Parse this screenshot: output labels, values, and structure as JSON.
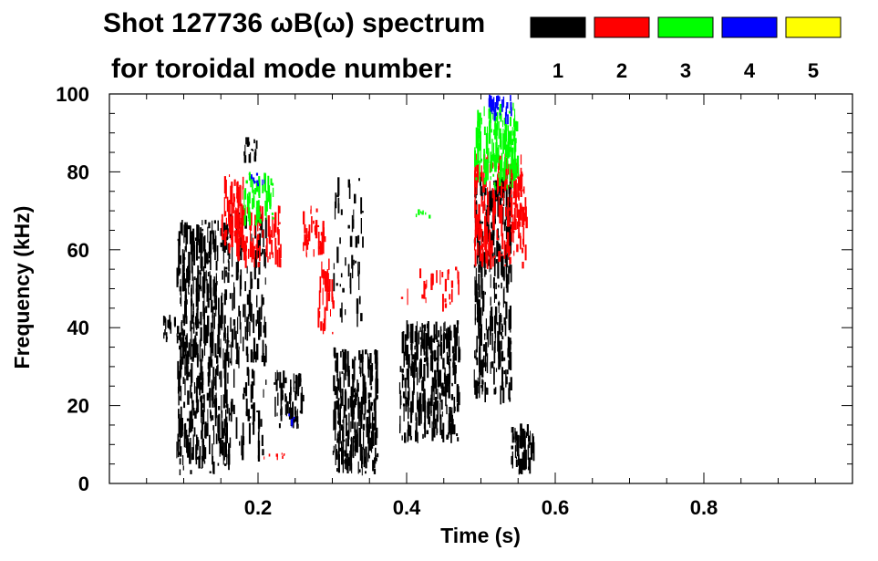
{
  "chart_data": {
    "type": "heatmap",
    "title_line1": "Shot 127736 ωB(ω) spectrum",
    "title_line2": "for toroidal mode number:",
    "xlabel": "Time (s)",
    "ylabel": "Frequency (kHz)",
    "xlim": [
      0.0,
      1.0
    ],
    "ylim": [
      0,
      100
    ],
    "xticks": [
      "0.2",
      "0.4",
      "0.6",
      "0.8"
    ],
    "xtick_values": [
      0.2,
      0.4,
      0.6,
      0.8
    ],
    "yticks": [
      "0",
      "20",
      "40",
      "60",
      "80",
      "100"
    ],
    "ytick_values": [
      0,
      20,
      40,
      60,
      80,
      100
    ],
    "legend": [
      {
        "label": "1",
        "color": "#000000"
      },
      {
        "label": "2",
        "color": "#ff0000"
      },
      {
        "label": "3",
        "color": "#00ff00"
      },
      {
        "label": "4",
        "color": "#0000ff"
      },
      {
        "label": "5",
        "color": "#ffff00"
      }
    ],
    "regions": [
      {
        "mode": "1",
        "color": "#000000",
        "t": [
          0.07,
          0.1
        ],
        "f": [
          36,
          44
        ],
        "density": 0.5
      },
      {
        "mode": "1",
        "color": "#000000",
        "t": [
          0.09,
          0.16
        ],
        "f": [
          2,
          68
        ],
        "density": 0.45
      },
      {
        "mode": "1",
        "color": "#000000",
        "t": [
          0.16,
          0.21
        ],
        "f": [
          5,
          70
        ],
        "density": 0.2
      },
      {
        "mode": "1",
        "color": "#000000",
        "t": [
          0.18,
          0.2
        ],
        "f": [
          82,
          89
        ],
        "density": 0.5
      },
      {
        "mode": "1",
        "color": "#000000",
        "t": [
          0.22,
          0.26
        ],
        "f": [
          14,
          30
        ],
        "density": 0.35
      },
      {
        "mode": "1",
        "color": "#000000",
        "t": [
          0.3,
          0.36
        ],
        "f": [
          2,
          35
        ],
        "density": 0.55
      },
      {
        "mode": "1",
        "color": "#000000",
        "t": [
          0.3,
          0.34
        ],
        "f": [
          40,
          80
        ],
        "density": 0.12
      },
      {
        "mode": "1",
        "color": "#000000",
        "t": [
          0.39,
          0.47
        ],
        "f": [
          10,
          42
        ],
        "density": 0.5
      },
      {
        "mode": "1",
        "color": "#000000",
        "t": [
          0.49,
          0.54
        ],
        "f": [
          20,
          80
        ],
        "density": 0.45
      },
      {
        "mode": "1",
        "color": "#000000",
        "t": [
          0.54,
          0.57
        ],
        "f": [
          2,
          16
        ],
        "density": 0.55
      },
      {
        "mode": "2",
        "color": "#ff0000",
        "t": [
          0.15,
          0.18
        ],
        "f": [
          58,
          80
        ],
        "density": 0.4
      },
      {
        "mode": "2",
        "color": "#ff0000",
        "t": [
          0.17,
          0.23
        ],
        "f": [
          55,
          72
        ],
        "density": 0.3
      },
      {
        "mode": "2",
        "color": "#ff0000",
        "t": [
          0.26,
          0.29
        ],
        "f": [
          58,
          72
        ],
        "density": 0.35
      },
      {
        "mode": "2",
        "color": "#ff0000",
        "t": [
          0.28,
          0.3
        ],
        "f": [
          38,
          58
        ],
        "density": 0.3
      },
      {
        "mode": "2",
        "color": "#ff0000",
        "t": [
          0.39,
          0.47
        ],
        "f": [
          44,
          56
        ],
        "density": 0.12
      },
      {
        "mode": "2",
        "color": "#ff0000",
        "t": [
          0.49,
          0.56
        ],
        "f": [
          55,
          85
        ],
        "density": 0.4
      },
      {
        "mode": "2",
        "color": "#ff0000",
        "t": [
          0.2,
          0.24
        ],
        "f": [
          6,
          8
        ],
        "density": 0.4
      },
      {
        "mode": "3",
        "color": "#00ff00",
        "t": [
          0.18,
          0.22
        ],
        "f": [
          66,
          80
        ],
        "density": 0.4
      },
      {
        "mode": "3",
        "color": "#00ff00",
        "t": [
          0.49,
          0.55
        ],
        "f": [
          75,
          98
        ],
        "density": 0.45
      },
      {
        "mode": "3",
        "color": "#00ff00",
        "t": [
          0.41,
          0.44
        ],
        "f": [
          68,
          71
        ],
        "density": 0.3
      },
      {
        "mode": "4",
        "color": "#0000ff",
        "t": [
          0.19,
          0.21
        ],
        "f": [
          76,
          80
        ],
        "density": 0.5
      },
      {
        "mode": "4",
        "color": "#0000ff",
        "t": [
          0.24,
          0.25
        ],
        "f": [
          14,
          18
        ],
        "density": 0.5
      },
      {
        "mode": "4",
        "color": "#0000ff",
        "t": [
          0.51,
          0.54
        ],
        "f": [
          92,
          100
        ],
        "density": 0.5
      }
    ]
  }
}
